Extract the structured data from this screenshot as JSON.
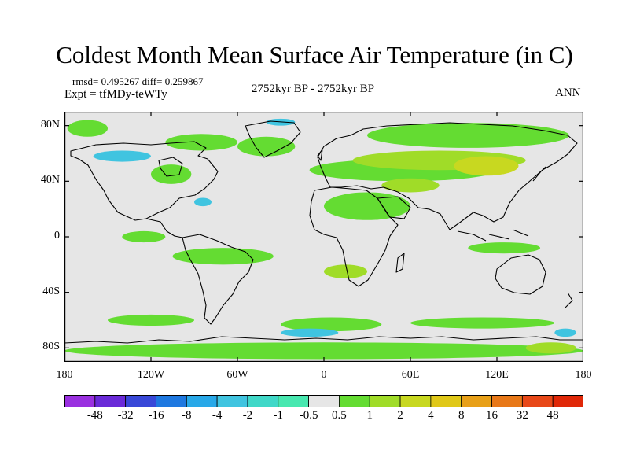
{
  "title": "Coldest Month Mean Surface Air Temperature (in C)",
  "stats": "rmsd= 0.495267 diff= 0.259867",
  "experiment": "Expt = tfMDy-teWTy",
  "period": "2752kyr BP - 2752kyr BP",
  "season": "ANN",
  "map": {
    "lon_range": [
      -180,
      180
    ],
    "lat_range": [
      -90,
      90
    ],
    "background_color": "#e6e6e6",
    "y_ticks": [
      {
        "lat": 80,
        "label": "80N"
      },
      {
        "lat": 40,
        "label": "40N"
      },
      {
        "lat": 0,
        "label": "0"
      },
      {
        "lat": -40,
        "label": "40S"
      },
      {
        "lat": -80,
        "label": "80S"
      }
    ],
    "x_ticks": [
      {
        "lon": -180,
        "label": "180"
      },
      {
        "lon": -120,
        "label": "120W"
      },
      {
        "lon": -60,
        "label": "60W"
      },
      {
        "lon": 0,
        "label": "0"
      },
      {
        "lon": 60,
        "label": "60E"
      },
      {
        "lon": 120,
        "label": "120E"
      },
      {
        "lon": 180,
        "label": "180"
      }
    ]
  },
  "colorbar": {
    "labels": [
      "-48",
      "-32",
      "-16",
      "-8",
      "-4",
      "-2",
      "-1",
      "-0.5",
      "0.5",
      "1",
      "2",
      "4",
      "8",
      "16",
      "32",
      "48"
    ],
    "colors": [
      "#9a30e0",
      "#6a2ad8",
      "#3848d8",
      "#1e78e0",
      "#28a8e8",
      "#40c4e0",
      "#40d8c8",
      "#48e8b0",
      "#e6e6e6",
      "#64dc32",
      "#a0dc28",
      "#c8d820",
      "#e0c818",
      "#e8a018",
      "#e87818",
      "#e84818",
      "#e02808"
    ]
  },
  "fields": [
    {
      "color": "#64dc32",
      "regions": [
        {
          "lon": [
            -178,
            -150
          ],
          "lat": [
            72,
            84
          ]
        },
        {
          "lon": [
            -110,
            -60
          ],
          "lat": [
            62,
            74
          ]
        },
        {
          "lon": [
            -60,
            -20
          ],
          "lat": [
            58,
            72
          ]
        },
        {
          "lon": [
            30,
            170
          ],
          "lat": [
            64,
            82
          ]
        },
        {
          "lon": [
            -10,
            120
          ],
          "lat": [
            40,
            56
          ]
        },
        {
          "lon": [
            -120,
            -92
          ],
          "lat": [
            38,
            52
          ]
        },
        {
          "lon": [
            0,
            60
          ],
          "lat": [
            12,
            32
          ]
        },
        {
          "lon": [
            -140,
            -110
          ],
          "lat": [
            -4,
            4
          ]
        },
        {
          "lon": [
            -150,
            -90
          ],
          "lat": [
            -64,
            -56
          ]
        },
        {
          "lon": [
            -30,
            40
          ],
          "lat": [
            -68,
            -58
          ]
        },
        {
          "lon": [
            60,
            160
          ],
          "lat": [
            -66,
            -58
          ]
        },
        {
          "lon": [
            -180,
            180
          ],
          "lat": [
            -88,
            -76
          ]
        },
        {
          "lon": [
            -105,
            -35
          ],
          "lat": [
            -20,
            -8
          ]
        },
        {
          "lon": [
            100,
            150
          ],
          "lat": [
            -12,
            -4
          ]
        }
      ]
    },
    {
      "color": "#a0dc28",
      "regions": [
        {
          "lon": [
            20,
            140
          ],
          "lat": [
            48,
            62
          ]
        },
        {
          "lon": [
            40,
            80
          ],
          "lat": [
            32,
            42
          ]
        },
        {
          "lon": [
            0,
            30
          ],
          "lat": [
            -30,
            -20
          ]
        },
        {
          "lon": [
            140,
            175
          ],
          "lat": [
            -84,
            -76
          ]
        }
      ]
    },
    {
      "color": "#c8d820",
      "regions": [
        {
          "lon": [
            90,
            135
          ],
          "lat": [
            44,
            58
          ]
        }
      ]
    },
    {
      "color": "#40c4e0",
      "regions": [
        {
          "lon": [
            -40,
            -20
          ],
          "lat": [
            80,
            85
          ]
        },
        {
          "lon": [
            -160,
            -120
          ],
          "lat": [
            54,
            62
          ]
        },
        {
          "lon": [
            -90,
            -78
          ],
          "lat": [
            22,
            28
          ]
        },
        {
          "lon": [
            -30,
            10
          ],
          "lat": [
            -72,
            -66
          ]
        },
        {
          "lon": [
            160,
            175
          ],
          "lat": [
            -72,
            -66
          ]
        }
      ]
    }
  ]
}
